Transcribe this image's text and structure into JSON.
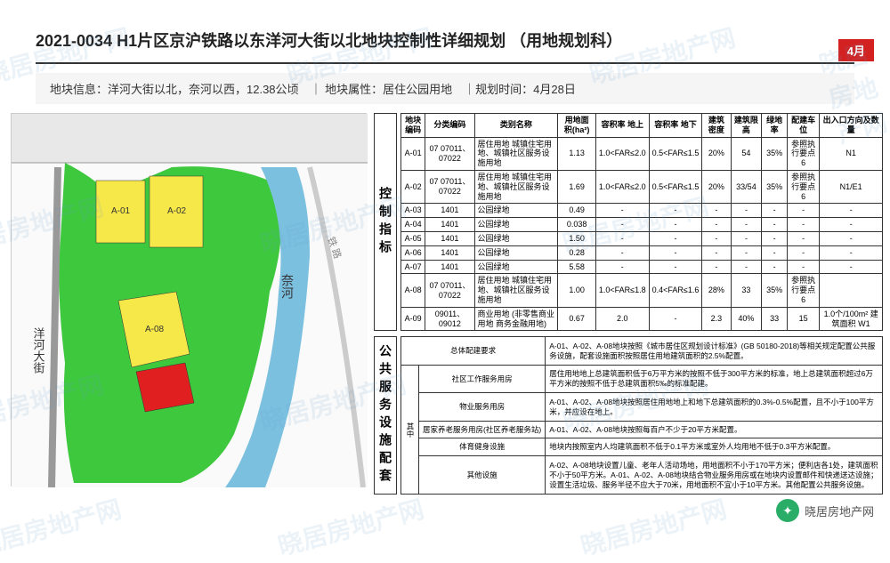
{
  "watermark_text": "晓居房地产网",
  "badge": "4月",
  "title": "2021-0034 H1片区京沪铁路以东洋河大街以北地块控制性详细规划 （用地规划科）",
  "info_bar": "地块信息：洋河大街以北，奈河以西，12.38公顷　｜ 地块属性：居住公园用地　｜规划时间：4月28日",
  "section1_label": "控制指标",
  "map": {
    "colors": {
      "green": "#3ec83e",
      "yellow": "#f7e84a",
      "red": "#e02020",
      "road": "#d8d8d8",
      "river": "#7cc0e0",
      "bg": "#fafafa",
      "border": "#cccccc"
    },
    "river_label": "奈河",
    "road_label": "洋河大街",
    "parcels": [
      {
        "label": "A-01",
        "fill": "#f7e84a"
      },
      {
        "label": "A-02",
        "fill": "#f7e84a"
      },
      {
        "label": "A-08",
        "fill": "#f7e84a"
      },
      {
        "label": "",
        "fill": "#e02020"
      }
    ]
  },
  "table1": {
    "headers": [
      "地块编码",
      "分类编码",
      "类别名称",
      "用地面积(ha²)",
      "容积率 地上",
      "容积率 地下",
      "建筑密度",
      "建筑限高",
      "绿地率",
      "配建车位",
      "出入口方向及数量"
    ],
    "rows": [
      [
        "A-01",
        "07 07011、07022",
        "居住用地 城镇住宅用地、城镇社区服务设施用地",
        "1.13",
        "1.0<FAR≤2.0",
        "0.5<FAR≤1.5",
        "20%",
        "54",
        "35%",
        "参照执行要点6",
        "N1"
      ],
      [
        "A-02",
        "07 07011、07022",
        "居住用地 城镇住宅用地、城镇社区服务设施用地",
        "1.69",
        "1.0<FAR≤2.0",
        "0.5<FAR≤1.5",
        "20%",
        "33/54",
        "35%",
        "参照执行要点6",
        "N1/E1"
      ],
      [
        "A-03",
        "1401",
        "公园绿地",
        "0.49",
        "-",
        "-",
        "-",
        "-",
        "-",
        "-",
        "-"
      ],
      [
        "A-04",
        "1401",
        "公园绿地",
        "0.038",
        "-",
        "-",
        "-",
        "-",
        "-",
        "-",
        "-"
      ],
      [
        "A-05",
        "1401",
        "公园绿地",
        "1.50",
        "-",
        "-",
        "-",
        "-",
        "-",
        "-",
        "-"
      ],
      [
        "A-06",
        "1401",
        "公园绿地",
        "0.28",
        "-",
        "-",
        "-",
        "-",
        "-",
        "-",
        "-"
      ],
      [
        "A-07",
        "1401",
        "公园绿地",
        "5.58",
        "-",
        "-",
        "-",
        "-",
        "-",
        "-",
        "-"
      ],
      [
        "A-08",
        "07 07011、07022",
        "居住用地 城镇住宅用地、城镇社区服务设施用地",
        "1.00",
        "1.0<FAR≤1.8",
        "0.4<FAR≤1.6",
        "28%",
        "33",
        "35%",
        "参照执行要点6",
        ""
      ],
      [
        "A-09",
        "09011、09012",
        "商业用地 (非零售商业用地 商务金融用地)",
        "0.67",
        "2.0",
        "-",
        "2.3",
        "40%",
        "33",
        "15",
        "1.0个/100m² 建筑面积  W1"
      ]
    ]
  },
  "section2_label": "公共服务设施配套",
  "table2": {
    "rows": [
      [
        "总体配建要求",
        "A-01、A-02、A-08地块按照《城市居住区规划设计标准》(GB 50180-2018)等相关规定配置公共服务设施，配套设施面积按照居住用地建筑面积的2.5%配置。"
      ],
      [
        "社区工作服务用房",
        "居住用地地上总建筑面积低于6万平方米的按照不低于300平方米的标准，地上总建筑面积超过6万平方米的按照不低于总建筑面积5‰的标准配建。"
      ],
      [
        "物业服务用房",
        "A-01、A-02、A-08地块按照居住用地地上和地下总建筑面积的0.3%-0.5%配置，且不小于100平方米，并应设在地上。"
      ],
      [
        "居家养老服务用房(社区养老服务站)",
        "A-01、A-02、A-08地块按照每百户不少于20平方米配置。"
      ],
      [
        "体育健身设施",
        "地块内按照室内人均建筑面积不低于0.1平方米或室外人均用地不低于0.3平方米配置。"
      ],
      [
        "其他设施",
        "A-02、A-08地块设置儿童、老年人活动场地，用地面积不小于170平方米；便利店各1处，建筑面积不小于50平方米。A-01、A-02、A-08地块结合物业服务用房或在地块内设置邮件和快递送达设施；设置生活垃圾、服务半径不应大于70米，用地面积不宜小于10平方米。其他配置公共服务设施。"
      ]
    ],
    "side_label": "其中"
  },
  "wechat": "晓居房地产网"
}
